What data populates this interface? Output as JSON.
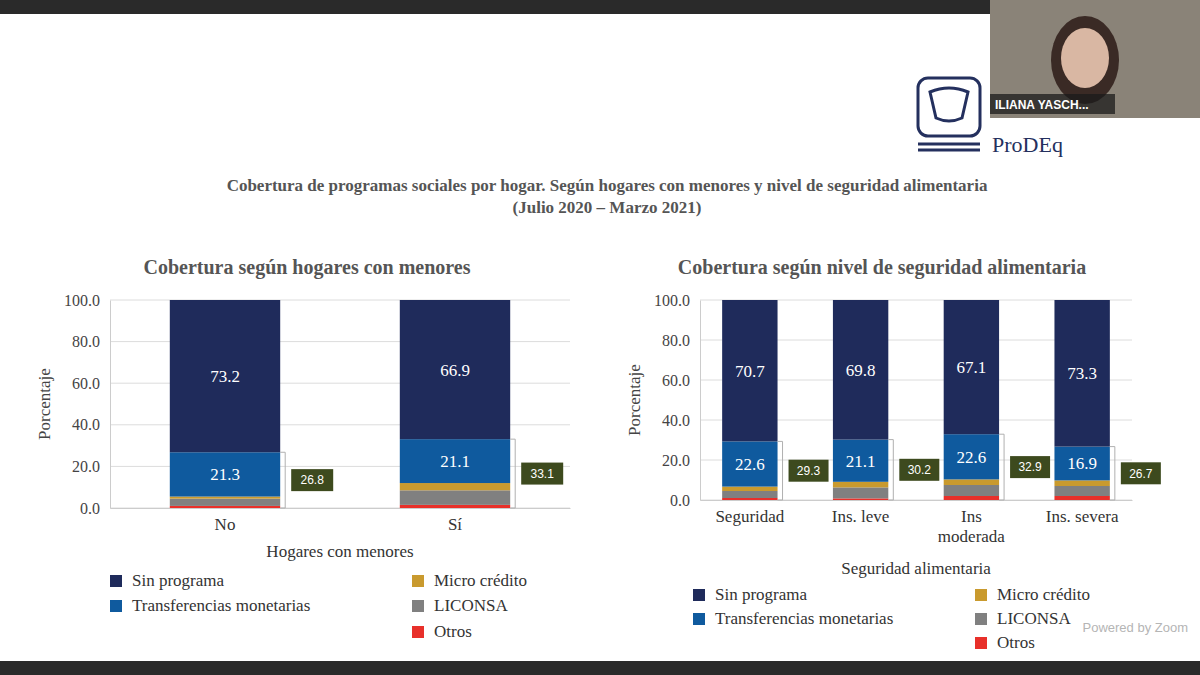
{
  "title": "Cobertura de programas sociales por hogar. Según hogares con menores y nivel de seguridad alimentaria (Julio 2020 – Marzo 2021)",
  "logo": "ProDEq",
  "presenter": "ILIANA YASCH...",
  "overlay": "Powered by Zoom",
  "chart_data": [
    {
      "type": "bar",
      "stacked": true,
      "title": "Cobertura según hogares con menores",
      "x_label": "Hogares con menores",
      "y_label": "Porcentaje",
      "categories": [
        "No",
        "Sí"
      ],
      "series": [
        {
          "name": "Sin programa",
          "color": "#1f2b5b",
          "values": [
            73.2,
            66.9
          ],
          "data_labels": true
        },
        {
          "name": "Transferencias monetarias",
          "color": "#0f5a9e",
          "values": [
            21.3,
            21.1
          ],
          "data_labels": true
        },
        {
          "name": "Micro crédito",
          "color": "#c99a2e",
          "values": [
            1.0,
            3.5
          ]
        },
        {
          "name": "LICONSA",
          "color": "#808080",
          "values": [
            3.5,
            7.0
          ]
        },
        {
          "name": "Otros",
          "color": "#e8302a",
          "values": [
            1.0,
            1.5
          ]
        }
      ],
      "coverage_totals": [
        26.8,
        33.1
      ],
      "ylim": [
        0,
        100
      ],
      "yticks": [
        {
          "value": 0,
          "label": "0.0"
        },
        {
          "value": 20,
          "label": "20.0"
        },
        {
          "value": 40,
          "label": "40.0"
        },
        {
          "value": 60,
          "label": "60.0"
        },
        {
          "value": 80,
          "label": "80.0"
        },
        {
          "value": 100,
          "label": "100.0"
        }
      ],
      "grid": true,
      "legend": "bottom"
    },
    {
      "type": "bar",
      "stacked": true,
      "title": "Cobertura según nivel de seguridad alimentaria",
      "x_label": "Seguridad alimentaria",
      "y_label": "Porcentaje",
      "categories": [
        "Seguridad",
        "Ins. leve",
        "Ins moderada",
        "Ins. severa"
      ],
      "series": [
        {
          "name": "Sin programa",
          "color": "#1f2b5b",
          "values": [
            70.7,
            69.8,
            67.1,
            73.3
          ],
          "data_labels": true
        },
        {
          "name": "Transferencias monetarias",
          "color": "#0f5a9e",
          "values": [
            22.6,
            21.1,
            22.6,
            16.9
          ],
          "data_labels": true
        },
        {
          "name": "Micro crédito",
          "color": "#c99a2e",
          "values": [
            2.2,
            2.8,
            2.8,
            2.8
          ]
        },
        {
          "name": "LICONSA",
          "color": "#808080",
          "values": [
            3.5,
            5.5,
            5.5,
            5.0
          ]
        },
        {
          "name": "Otros",
          "color": "#e8302a",
          "values": [
            1.0,
            0.8,
            2.0,
            2.0
          ]
        }
      ],
      "coverage_totals": [
        29.3,
        30.2,
        32.9,
        26.7
      ],
      "ylim": [
        0,
        100
      ],
      "yticks": [
        {
          "value": 0,
          "label": "0.0"
        },
        {
          "value": 20,
          "label": "20.0"
        },
        {
          "value": 40,
          "label": "40.0"
        },
        {
          "value": 60,
          "label": "60.0"
        },
        {
          "value": 80,
          "label": "80.0"
        },
        {
          "value": 100,
          "label": "100.0"
        }
      ],
      "grid": true,
      "legend": "bottom"
    }
  ]
}
